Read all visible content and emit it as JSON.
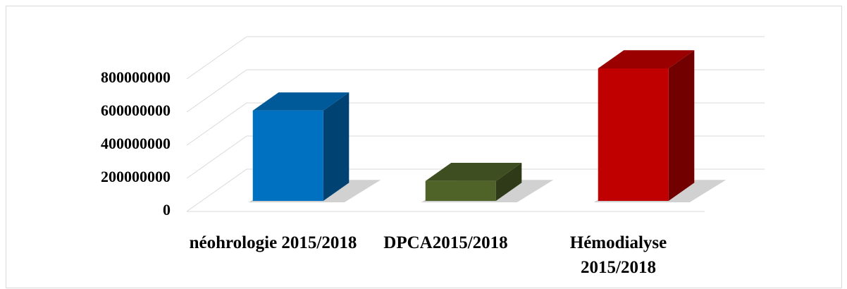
{
  "chart_data": {
    "type": "bar3d",
    "categories": [
      "néohrologie 2015/2018",
      "DPCA2015/2018",
      "Hémodialyse 2015/2018"
    ],
    "values": [
      545000000,
      120000000,
      800000000
    ],
    "colors": [
      "#0070c0",
      "#4f6228",
      "#c00000"
    ],
    "ylim": [
      0,
      800000000
    ],
    "yticks": [
      0,
      200000000,
      400000000,
      600000000,
      800000000
    ],
    "grid": true
  }
}
